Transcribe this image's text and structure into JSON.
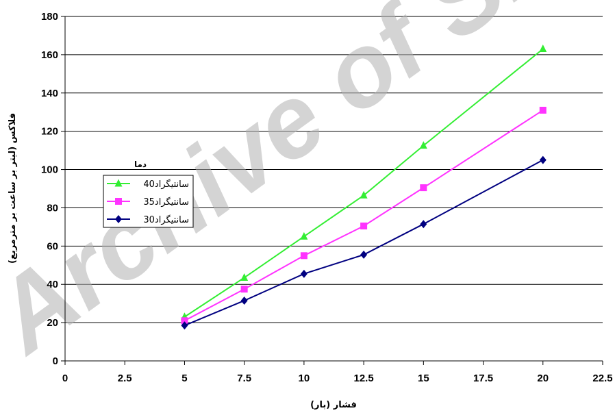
{
  "watermark": "Archive of SID",
  "chart_data": {
    "type": "line",
    "title": "",
    "xlabel": "فشار (بار)",
    "ylabel": "فلاکس (لیتر بر ساعت بر مترمربع)",
    "xlim": [
      0,
      22.5
    ],
    "ylim": [
      0,
      180
    ],
    "xticks": [
      "0",
      "2.5",
      "5",
      "7.5",
      "10",
      "12.5",
      "15",
      "17.5",
      "20",
      "22.5"
    ],
    "yticks": [
      "0",
      "20",
      "40",
      "60",
      "80",
      "100",
      "120",
      "140",
      "160",
      "180"
    ],
    "grid": "horizontal",
    "legend": {
      "title": "دما",
      "placement": "left-middle"
    },
    "x": [
      5,
      7.5,
      10,
      12.5,
      15,
      20
    ],
    "series": [
      {
        "name": "40سانتیگراد",
        "marker": "triangle",
        "color": "#33ee33",
        "values": [
          23,
          43.5,
          65,
          86.5,
          112.5,
          163
        ]
      },
      {
        "name": "35سانتیگراد",
        "marker": "square",
        "color": "#ff33ff",
        "values": [
          21,
          37.5,
          55,
          70.5,
          90.5,
          131
        ]
      },
      {
        "name": "30سانتیگراد",
        "marker": "diamond",
        "color": "#000080",
        "values": [
          18.5,
          31.5,
          45.5,
          55.5,
          71.5,
          105
        ]
      }
    ]
  }
}
